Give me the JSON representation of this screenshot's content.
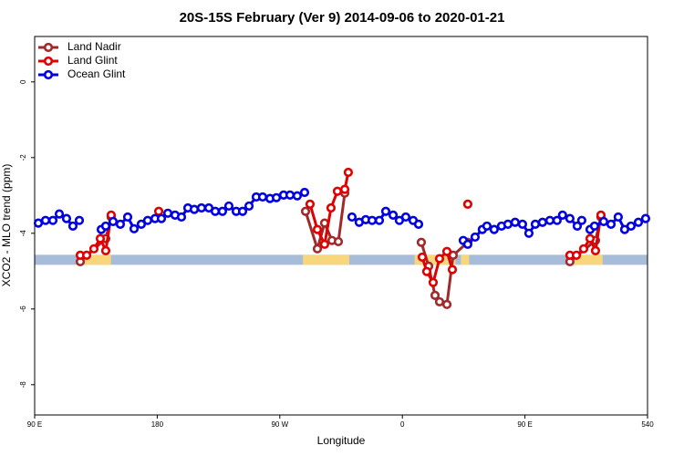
{
  "chart_data": {
    "type": "line",
    "title": "20S-15S February (Ver 9)   2014-09-06 to 2020-01-21",
    "x_label": "Longitude",
    "y_label": "XCO2 - MLO trend (ppm)",
    "xlim": [
      90,
      540
    ],
    "ylim": [
      -8.8,
      1.2
    ],
    "xticks": [
      {
        "value": 90,
        "label": "90 E"
      },
      180,
      {
        "value": 270,
        "label": "90 W"
      },
      {
        "value": 360,
        "label": "0"
      },
      {
        "value": 450,
        "label": "90 E"
      },
      540
    ],
    "yticks": [
      0,
      -2,
      -4,
      -6,
      -8
    ],
    "legend": "top-left",
    "surface_band": {
      "y": -4.7,
      "ocean_color": "#a7bcd9",
      "land_color": "#f8d77c",
      "land_ranges": [
        [
          123,
          146
        ],
        [
          287,
          321
        ],
        [
          369,
          399
        ],
        [
          403,
          409
        ],
        [
          481,
          507
        ]
      ]
    },
    "series": [
      {
        "name": "Land Nadir",
        "color": "#a0292b",
        "x": [
          123.5,
          142.2,
          146.2,
          null,
          288.9,
          297.6,
          302.9,
          308.3,
          313,
          317.7,
          null,
          373.9,
          379.3,
          384,
          387.3,
          392.7,
          397.3,
          408,
          null,
          483,
          501.8,
          505.8
        ],
        "values": [
          -4.75,
          -4.14,
          -3.57,
          null,
          -3.42,
          -4.41,
          -3.73,
          -4.19,
          -4.22,
          -2.94,
          null,
          -4.24,
          -4.87,
          -5.64,
          -5.81,
          -5.88,
          -4.58,
          -4.24,
          null,
          -4.75,
          -4.19,
          -3.57
        ]
      },
      {
        "name": "Land Glint",
        "color": "#e00000",
        "x": [
          123.5,
          128.2,
          133.5,
          138.2,
          142.2,
          146.2,
          null,
          181.1,
          null,
          292.2,
          297.6,
          302.9,
          307.6,
          312.3,
          317.7,
          320.3,
          null,
          374.6,
          377.9,
          382.6,
          387.3,
          392.7,
          396.7,
          null,
          408,
          null,
          483,
          487.8,
          493.1,
          497.8,
          501.8,
          505.8
        ],
        "values": [
          -4.58,
          -4.58,
          -4.41,
          -4.14,
          -4.46,
          -3.52,
          null,
          -3.42,
          null,
          -3.23,
          -3.9,
          -4.29,
          -3.33,
          -2.89,
          -2.84,
          -2.39,
          null,
          -4.63,
          -5.01,
          -5.3,
          -4.67,
          -4.48,
          -4.96,
          null,
          -3.23,
          null,
          -4.58,
          -4.58,
          -4.41,
          -4.14,
          -4.46,
          -3.52
        ]
      },
      {
        "name": "Ocean Glint",
        "color": "#0000e0",
        "x": [
          92.7,
          98,
          103.4,
          108.1,
          113.4,
          118.1,
          122.8,
          null,
          138.9,
          142.2,
          147.6,
          152.9,
          158.3,
          163,
          168.3,
          173,
          178.4,
          183.1,
          187.8,
          193.1,
          197.8,
          202.5,
          207.2,
          212.5,
          217.9,
          222.6,
          227.9,
          232.6,
          238,
          242.7,
          247.4,
          252.7,
          257.4,
          262.8,
          267.5,
          272.8,
          277.5,
          282.8,
          288.2,
          null,
          323,
          328.3,
          333.1,
          337.8,
          343.1,
          347.8,
          353.2,
          357.8,
          362.5,
          367.9,
          371.9,
          null,
          404.7,
          408,
          413.4,
          418.7,
          422.1,
          427.4,
          432.8,
          437.5,
          442.8,
          448.2,
          452.9,
          457.6,
          462.9,
          468.3,
          473.6,
          477.6,
          483,
          488.4,
          491.7,
          null,
          497.8,
          501.1,
          507.8,
          513.2,
          518.5,
          523.2,
          527.9,
          533.3,
          538.6
        ],
        "values": [
          -3.73,
          -3.66,
          -3.66,
          -3.49,
          -3.61,
          -3.81,
          -3.66,
          null,
          -3.9,
          -3.81,
          -3.69,
          -3.76,
          -3.57,
          -3.88,
          -3.76,
          -3.66,
          -3.61,
          -3.61,
          -3.47,
          -3.52,
          -3.57,
          -3.33,
          -3.37,
          -3.33,
          -3.33,
          -3.42,
          -3.42,
          -3.28,
          -3.42,
          -3.42,
          -3.28,
          -3.04,
          -3.04,
          -3.08,
          -3.06,
          -2.99,
          -2.99,
          -3.01,
          -2.92,
          null,
          -3.57,
          -3.71,
          -3.64,
          -3.66,
          -3.66,
          -3.42,
          -3.52,
          -3.66,
          -3.57,
          -3.66,
          -3.76,
          null,
          -4.19,
          -4.29,
          -4.1,
          -3.9,
          -3.81,
          -3.9,
          -3.81,
          -3.76,
          -3.71,
          -3.76,
          -4.0,
          -3.76,
          -3.71,
          -3.66,
          -3.66,
          -3.52,
          -3.61,
          -3.81,
          -3.66,
          null,
          -3.9,
          -3.81,
          -3.69,
          -3.76,
          -3.57,
          -3.9,
          -3.81,
          -3.71,
          -3.61
        ]
      }
    ]
  }
}
